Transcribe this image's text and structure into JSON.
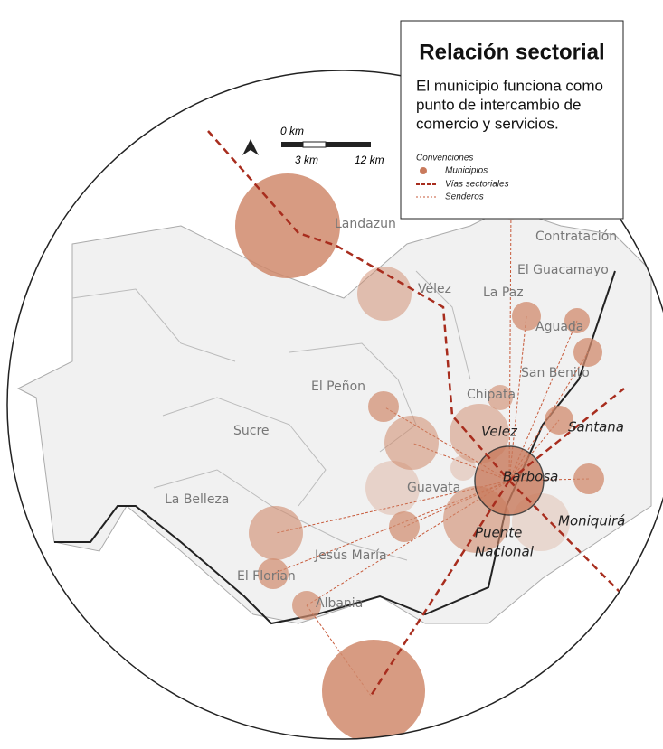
{
  "header": {
    "title": "Relación sectorial",
    "description": [
      "El municipio funciona como",
      "punto de intercambio de",
      "comercio y servicios."
    ]
  },
  "scale_bar": {
    "zero": "0 km",
    "mid": "3 km",
    "end": "12 km"
  },
  "legend": {
    "title": "Convenciones",
    "items": [
      "Municipios",
      "Vías sectoriales",
      "Senderos"
    ]
  },
  "places": [
    "Landazun",
    "Vélez",
    "La Paz",
    "El Peñon",
    "Sucre",
    "La Belleza",
    "Guavata",
    "Jesús María",
    "El Florian",
    "Albania",
    "Chipata",
    "Aguada",
    "San Benito",
    "Contratación",
    "El Guacamayo"
  ],
  "highlighted": [
    "Barbosa",
    "Velez",
    "Santana",
    "Moniquirá",
    "Puente",
    "Nacional"
  ]
}
